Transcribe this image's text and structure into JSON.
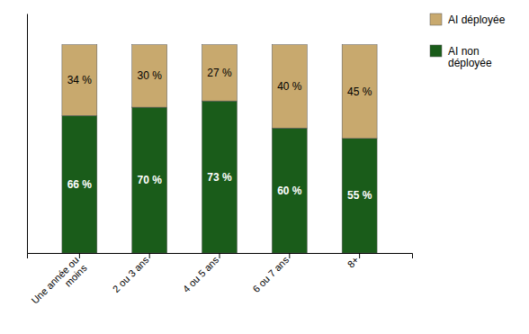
{
  "chart_data": {
    "type": "bar",
    "stacked": true,
    "data_labels": true,
    "tick_labels": "x",
    "grid": false,
    "legend": "upper right",
    "categories": [
      "Une année ou\nmoins",
      "2 ou 3 ans",
      "4 ou 5 ans",
      "6 ou 7 ans",
      "8+"
    ],
    "series": [
      {
        "name": "AI non\ndéployée",
        "color": "#1A5C1A",
        "values": [
          66,
          70,
          73,
          60,
          55
        ],
        "value_labels": [
          "66 %",
          "70 %",
          "73 %",
          "60 %",
          "55 %"
        ]
      },
      {
        "name": "AI déployée",
        "color": "#C8A96E",
        "values": [
          34,
          30,
          27,
          40,
          45
        ],
        "value_labels": [
          "34 %",
          "30 %",
          "27 %",
          "40 %",
          "45 %"
        ]
      }
    ],
    "ylim": [
      0,
      115
    ]
  }
}
